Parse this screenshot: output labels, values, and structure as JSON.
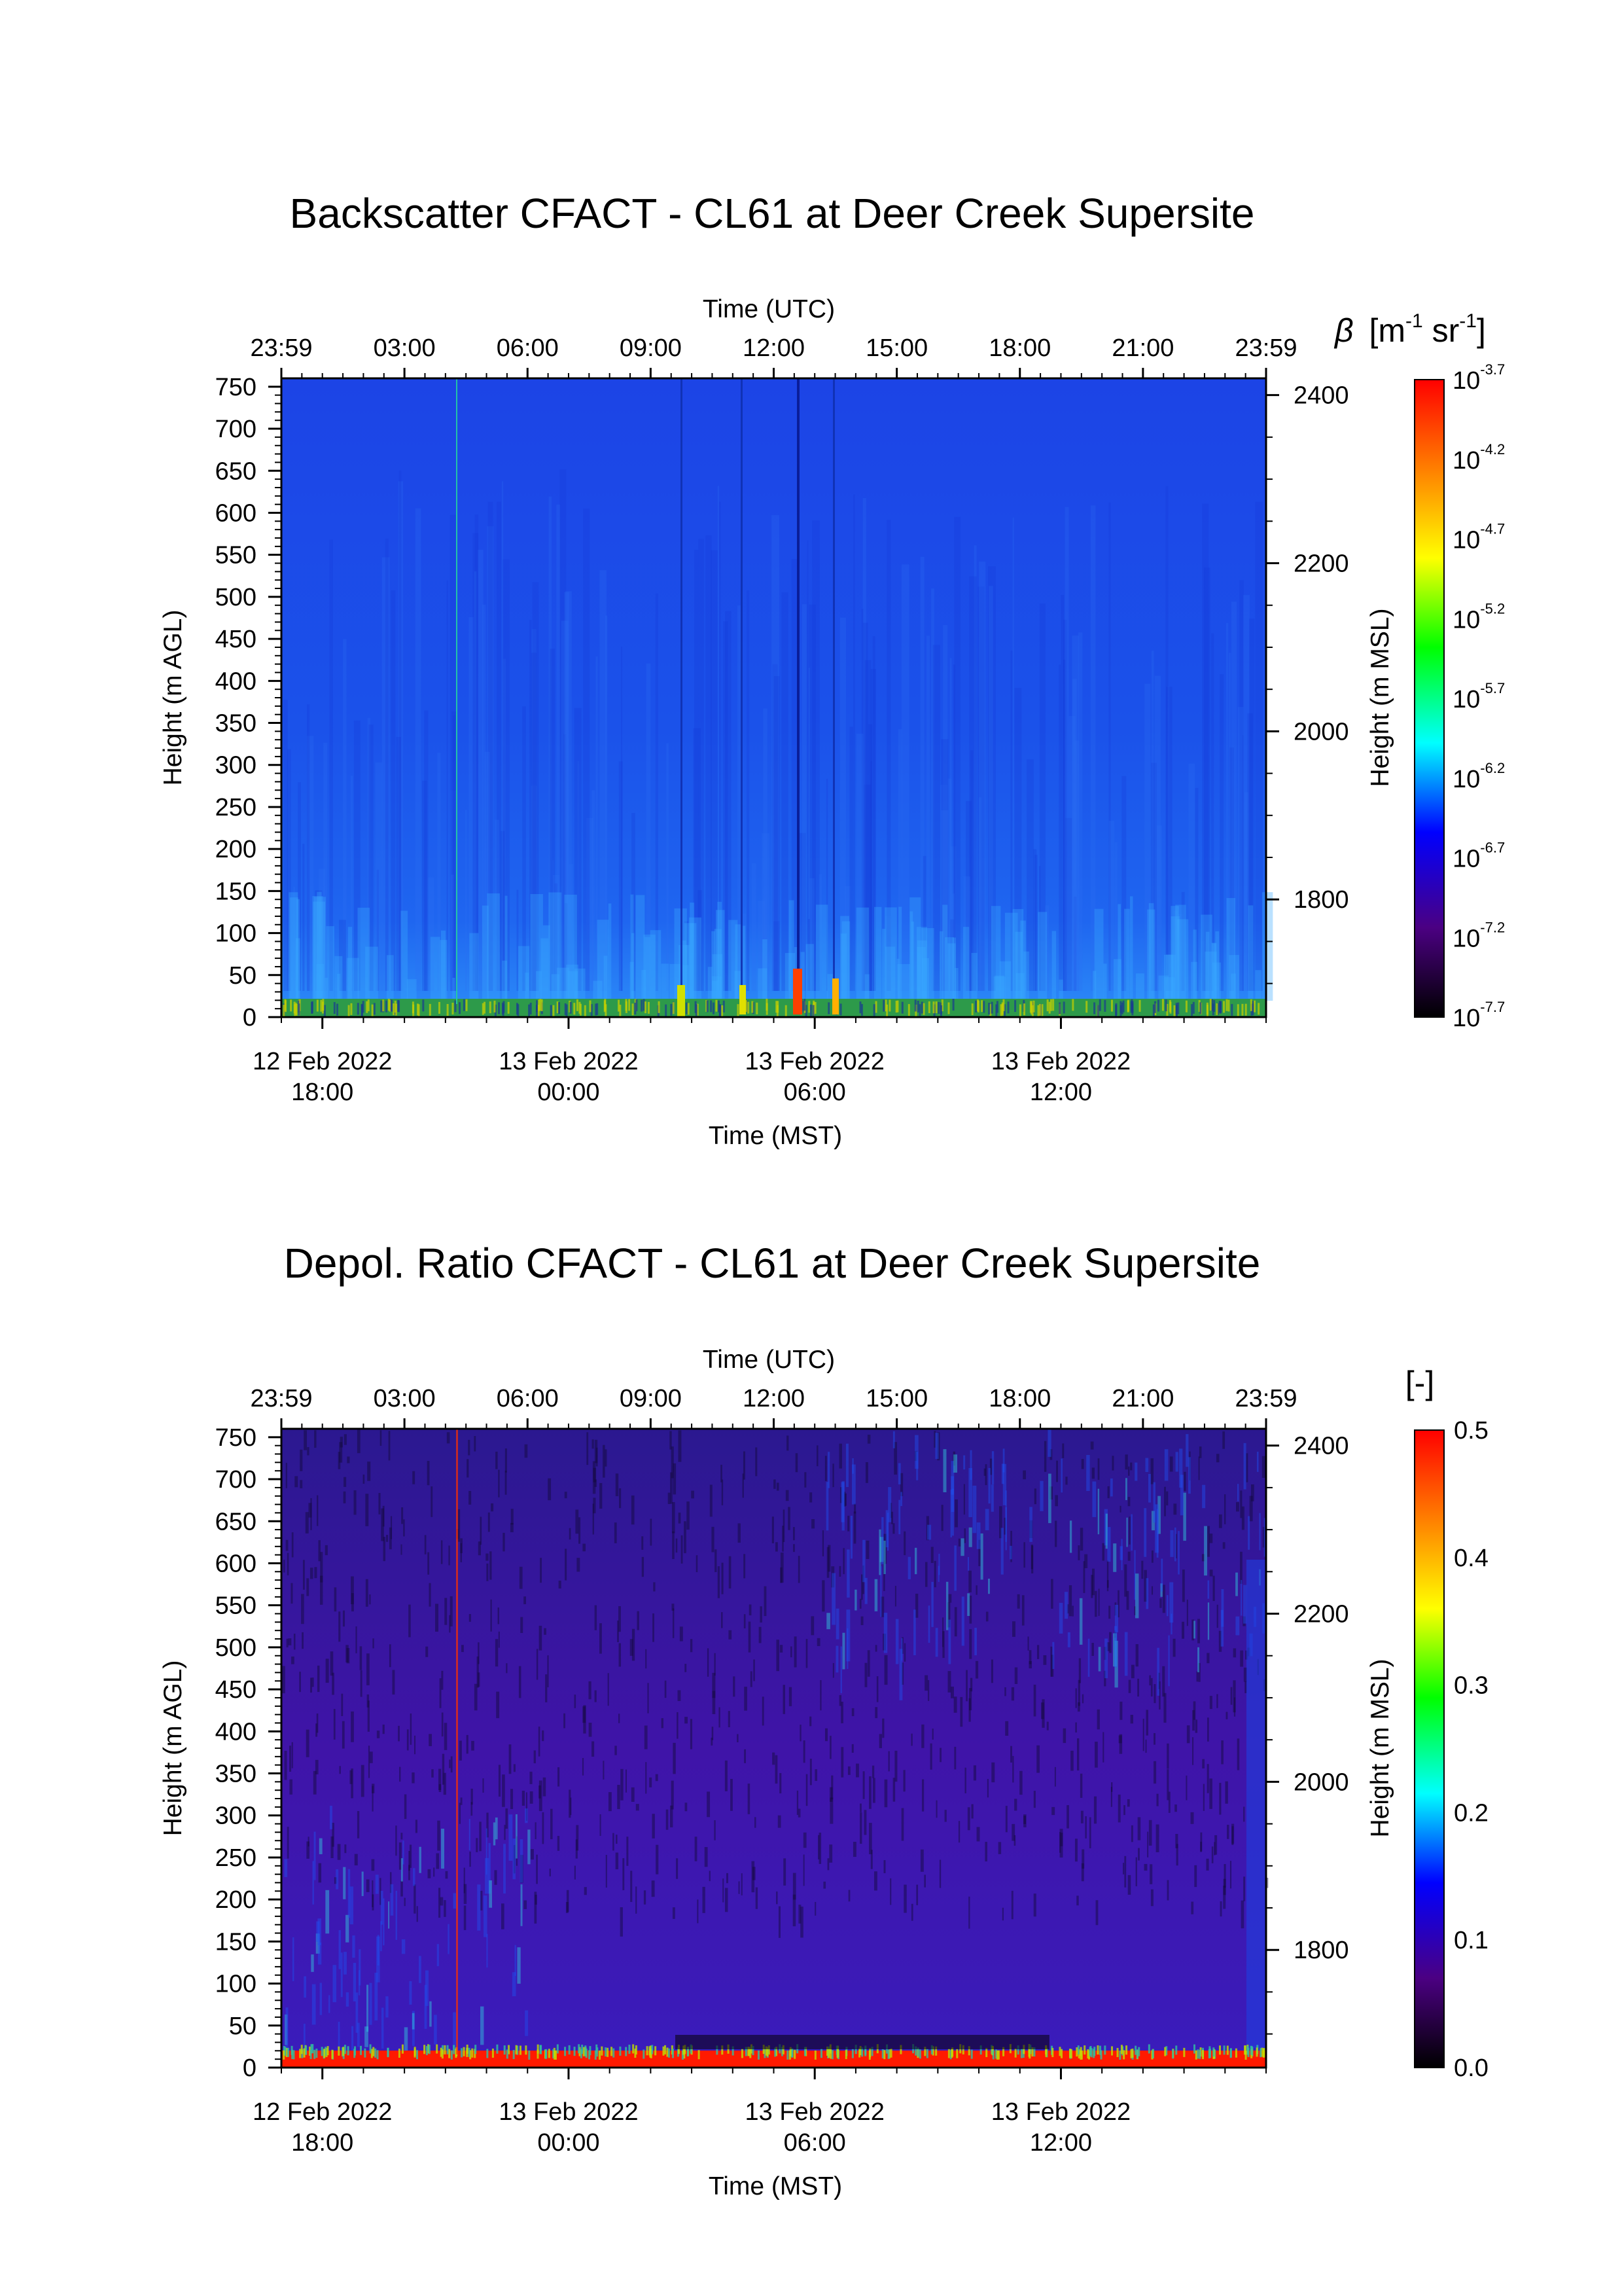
{
  "chart_data": [
    {
      "type": "heatmap",
      "title": "Backscatter CFACT - CL61 at Deer Creek Supersite",
      "top_axis_label": "Time (UTC)",
      "top_ticks": [
        "23:59",
        "03:00",
        "06:00",
        "09:00",
        "12:00",
        "15:00",
        "18:00",
        "21:00",
        "23:59"
      ],
      "bottom_axis_label": "Time (MST)",
      "bottom_ticks": [
        {
          "date": "12 Feb 2022",
          "time": "18:00",
          "hour_utc": 1
        },
        {
          "date": "13 Feb 2022",
          "time": "00:00",
          "hour_utc": 7
        },
        {
          "date": "13 Feb 2022",
          "time": "06:00",
          "hour_utc": 13
        },
        {
          "date": "13 Feb 2022",
          "time": "12:00",
          "hour_utc": 19
        }
      ],
      "x_range_utc_hours": [
        0,
        24
      ],
      "left_axis_label": "Height (m AGL)",
      "left_ticks": [
        0,
        50,
        100,
        150,
        200,
        250,
        300,
        350,
        400,
        450,
        500,
        550,
        600,
        650,
        700,
        750
      ],
      "ylim": [
        0,
        760
      ],
      "right_axis_label": "Height (m MSL)",
      "right_ticks": [
        1800,
        2000,
        2200,
        2400
      ],
      "right_ylim": [
        1660,
        2420
      ],
      "colorbar": {
        "label_symbol": "β",
        "label_units": "[m",
        "label_sup1": "-1",
        "label_mid": " sr",
        "label_sup2": "-1",
        "label_end": "]",
        "scale": "log",
        "tick_base": "10",
        "tick_exponents": [
          "-3.7",
          "-4.2",
          "-4.7",
          "-5.2",
          "-5.7",
          "-6.2",
          "-6.7",
          "-7.2",
          "-7.7"
        ],
        "colors": [
          "#ff0000",
          "#ff7f00",
          "#ffff00",
          "#00ff00",
          "#00ffff",
          "#0000ff",
          "#4b0082",
          "#000000"
        ]
      },
      "field_description_colors": {
        "background": "#1a50e8",
        "near_surface": "#2aa0ff",
        "surface_layer": "#32c832"
      }
    },
    {
      "type": "heatmap",
      "title": "Depol. Ratio CFACT - CL61 at Deer Creek Supersite",
      "top_axis_label": "Time (UTC)",
      "top_ticks": [
        "23:59",
        "03:00",
        "06:00",
        "09:00",
        "12:00",
        "15:00",
        "18:00",
        "21:00",
        "23:59"
      ],
      "bottom_axis_label": "Time (MST)",
      "bottom_ticks": [
        {
          "date": "12 Feb 2022",
          "time": "18:00",
          "hour_utc": 1
        },
        {
          "date": "13 Feb 2022",
          "time": "00:00",
          "hour_utc": 7
        },
        {
          "date": "13 Feb 2022",
          "time": "06:00",
          "hour_utc": 13
        },
        {
          "date": "13 Feb 2022",
          "time": "12:00",
          "hour_utc": 19
        }
      ],
      "x_range_utc_hours": [
        0,
        24
      ],
      "left_axis_label": "Height (m AGL)",
      "left_ticks": [
        0,
        50,
        100,
        150,
        200,
        250,
        300,
        350,
        400,
        450,
        500,
        550,
        600,
        650,
        700,
        750
      ],
      "ylim": [
        0,
        760
      ],
      "right_axis_label": "Height (m MSL)",
      "right_ticks": [
        1800,
        2000,
        2200,
        2400
      ],
      "right_ylim": [
        1660,
        2420
      ],
      "colorbar": {
        "label": "[-]",
        "scale": "linear",
        "range": [
          0.0,
          0.5
        ],
        "ticks": [
          "0.5",
          "0.4",
          "0.3",
          "0.2",
          "0.1",
          "0.0"
        ],
        "colors": [
          "#ff0000",
          "#ff7f00",
          "#ffff00",
          "#00ff00",
          "#00ffff",
          "#0000ff",
          "#4b0082",
          "#000000"
        ]
      },
      "field_description_colors": {
        "background": "#3a1ab0",
        "upper_blue": "#2040e0",
        "surface_layer": "#ff1a00"
      }
    }
  ]
}
